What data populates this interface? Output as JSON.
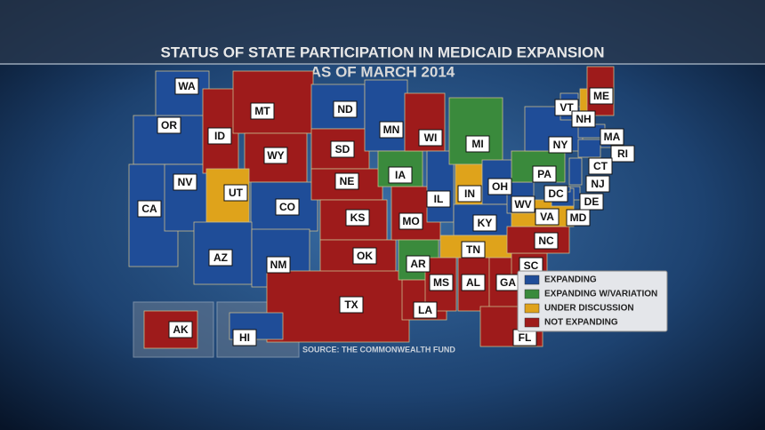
{
  "header": {
    "title": "STATUS OF STATE PARTICIPATION IN MEDICAID EXPANSION",
    "subtitle": "AS OF MARCH 2014"
  },
  "legend": [
    {
      "label": "EXPANDING",
      "color": "#1f4d98"
    },
    {
      "label": "EXPANDING W/VARIATION",
      "color": "#3a8a3c"
    },
    {
      "label": "UNDER DISCUSSION",
      "color": "#dfa31b"
    },
    {
      "label": "NOT EXPANDING",
      "color": "#9e1b1b"
    }
  ],
  "states": [
    {
      "label": "WA",
      "status": 0
    },
    {
      "label": "OR",
      "status": 0
    },
    {
      "label": "CA",
      "status": 0
    },
    {
      "label": "NV",
      "status": 0
    },
    {
      "label": "ID",
      "status": 3
    },
    {
      "label": "MT",
      "status": 3
    },
    {
      "label": "WY",
      "status": 3
    },
    {
      "label": "UT",
      "status": 2
    },
    {
      "label": "CO",
      "status": 0
    },
    {
      "label": "AZ",
      "status": 0
    },
    {
      "label": "NM",
      "status": 0
    },
    {
      "label": "ND",
      "status": 0
    },
    {
      "label": "SD",
      "status": 3
    },
    {
      "label": "NE",
      "status": 3
    },
    {
      "label": "KS",
      "status": 3
    },
    {
      "label": "OK",
      "status": 3
    },
    {
      "label": "TX",
      "status": 3
    },
    {
      "label": "MN",
      "status": 0
    },
    {
      "label": "IA",
      "status": 1
    },
    {
      "label": "MO",
      "status": 3
    },
    {
      "label": "AR",
      "status": 1
    },
    {
      "label": "LA",
      "status": 3
    },
    {
      "label": "WI",
      "status": 3
    },
    {
      "label": "IL",
      "status": 0
    },
    {
      "label": "MI",
      "status": 1
    },
    {
      "label": "IN",
      "status": 2
    },
    {
      "label": "OH",
      "status": 0
    },
    {
      "label": "KY",
      "status": 0
    },
    {
      "label": "TN",
      "status": 2
    },
    {
      "label": "MS",
      "status": 3
    },
    {
      "label": "AL",
      "status": 3
    },
    {
      "label": "GA",
      "status": 3
    },
    {
      "label": "FL",
      "status": 3
    },
    {
      "label": "SC",
      "status": 3
    },
    {
      "label": "NC",
      "status": 3
    },
    {
      "label": "VA",
      "status": 2
    },
    {
      "label": "WV",
      "status": 0
    },
    {
      "label": "PA",
      "status": 1
    },
    {
      "label": "NY",
      "status": 0
    },
    {
      "label": "VT",
      "status": 0
    },
    {
      "label": "NH",
      "status": 2
    },
    {
      "label": "ME",
      "status": 3
    },
    {
      "label": "MA",
      "status": 0
    },
    {
      "label": "RI",
      "status": 0
    },
    {
      "label": "CT",
      "status": 0
    },
    {
      "label": "NJ",
      "status": 0
    },
    {
      "label": "DE",
      "status": 0
    },
    {
      "label": "MD",
      "status": 0
    },
    {
      "label": "DC",
      "status": 0
    },
    {
      "label": "AK",
      "status": 3
    },
    {
      "label": "HI",
      "status": 0
    }
  ],
  "source": "SOURCE: THE COMMONWEALTH FUND"
}
